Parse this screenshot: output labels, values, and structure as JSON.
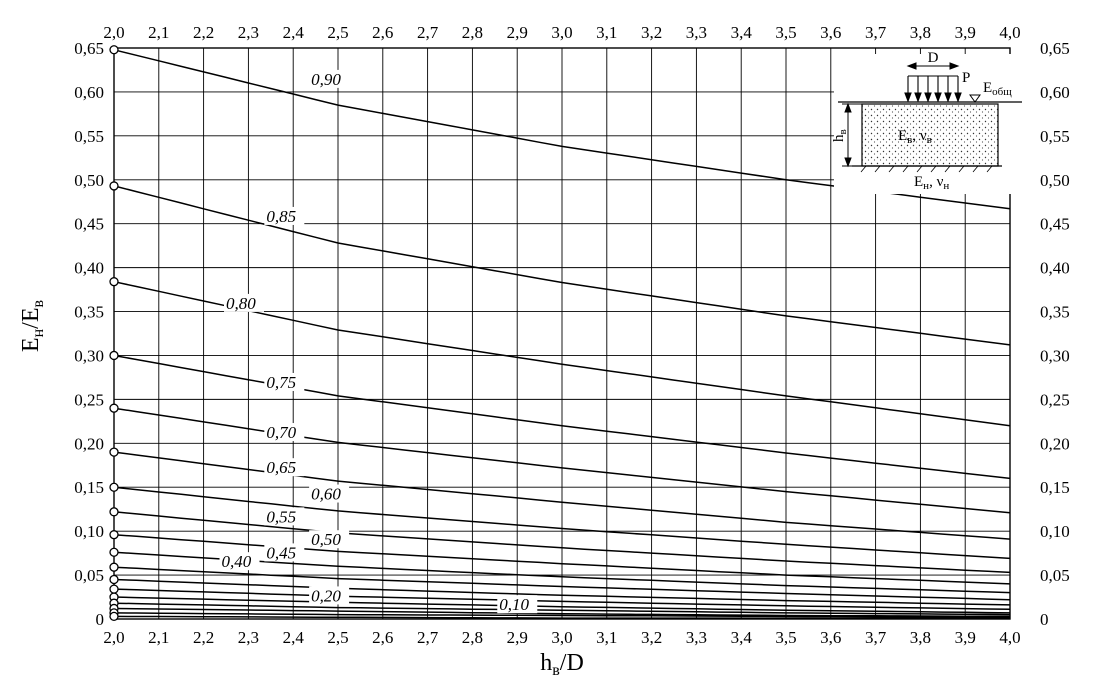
{
  "chart_data": {
    "type": "line",
    "xlabel": "h",
    "xlabel_sub": "в",
    "xlabel_tail": "/D",
    "ylabel": "E",
    "ylabel_sub1": "н",
    "ylabel_mid": "/E",
    "ylabel_sub2": "в",
    "xlim": [
      2.0,
      4.0
    ],
    "ylim": [
      0,
      0.65
    ],
    "grid": true,
    "x_ticks": [
      "2,0",
      "2,1",
      "2,2",
      "2,3",
      "2,4",
      "2,5",
      "2,6",
      "2,7",
      "2,8",
      "2,9",
      "3,0",
      "3,1",
      "3,2",
      "3,3",
      "3,4",
      "3,5",
      "3,6",
      "3,7",
      "3,8",
      "3,9",
      "4,0"
    ],
    "y_ticks": [
      "0",
      "0,05",
      "0,10",
      "0,15",
      "0,20",
      "0,25",
      "0,30",
      "0,35",
      "0,40",
      "0,45",
      "0,50",
      "0,55",
      "0,60",
      "0,65"
    ],
    "x": [
      2.0,
      2.5,
      3.0,
      3.5,
      4.0
    ],
    "series": [
      {
        "name": "0,90",
        "values": [
          0.648,
          0.585,
          0.538,
          0.5,
          0.467
        ],
        "label_at": [
          2.44,
          0.608
        ]
      },
      {
        "name": "0,85",
        "values": [
          0.493,
          0.428,
          0.383,
          0.345,
          0.312
        ],
        "label_at": [
          2.34,
          0.452
        ]
      },
      {
        "name": "0,80",
        "values": [
          0.384,
          0.329,
          0.29,
          0.254,
          0.22
        ],
        "label_at": [
          2.25,
          0.353
        ]
      },
      {
        "name": "0,75",
        "values": [
          0.3,
          0.254,
          0.22,
          0.189,
          0.16
        ],
        "label_at": [
          2.34,
          0.263
        ]
      },
      {
        "name": "0,70",
        "values": [
          0.24,
          0.201,
          0.172,
          0.145,
          0.121
        ],
        "label_at": [
          2.34,
          0.206
        ]
      },
      {
        "name": "0,65",
        "values": [
          0.19,
          0.157,
          0.133,
          0.11,
          0.091
        ],
        "label_at": [
          2.34,
          0.166
        ]
      },
      {
        "name": "0,60",
        "values": [
          0.15,
          0.123,
          0.103,
          0.085,
          0.069
        ],
        "label_at": [
          2.44,
          0.136
        ]
      },
      {
        "name": "0,55",
        "values": [
          0.122,
          0.098,
          0.081,
          0.066,
          0.053
        ],
        "label_at": [
          2.34,
          0.11
        ]
      },
      {
        "name": "0,50",
        "values": [
          0.096,
          0.077,
          0.063,
          0.05,
          0.04
        ],
        "label_at": [
          2.44,
          0.084
        ]
      },
      {
        "name": "0,45",
        "values": [
          0.076,
          0.06,
          0.048,
          0.038,
          0.03
        ],
        "label_at": [
          2.34,
          0.069
        ]
      },
      {
        "name": "0,40",
        "values": [
          0.059,
          0.046,
          0.037,
          0.029,
          0.022
        ],
        "label_at": [
          2.24,
          0.059
        ]
      },
      {
        "name": "",
        "values": [
          0.045,
          0.035,
          0.027,
          0.021,
          0.016
        ]
      },
      {
        "name": "",
        "values": [
          0.034,
          0.026,
          0.02,
          0.015,
          0.011
        ]
      },
      {
        "name": "",
        "values": [
          0.025,
          0.019,
          0.014,
          0.01,
          0.007
        ]
      },
      {
        "name": "0,20",
        "values": [
          0.018,
          0.013,
          0.01,
          0.007,
          0.005
        ],
        "label_at": [
          2.44,
          0.02
        ]
      },
      {
        "name": "",
        "values": [
          0.012,
          0.009,
          0.006,
          0.004,
          0.003
        ]
      },
      {
        "name": "0,10",
        "values": [
          0.007,
          0.005,
          0.004,
          0.003,
          0.002
        ],
        "label_at": [
          2.86,
          0.01
        ]
      },
      {
        "name": "",
        "values": [
          0.003,
          0.002,
          0.001,
          0.001,
          0.001
        ]
      }
    ]
  },
  "inset": {
    "d_label": "D",
    "p_label": "P",
    "e_total": "E",
    "e_total_sub": "общ",
    "h_label": "h",
    "h_sub": "в",
    "upper_layer": "E",
    "upper_layer_sub": "в",
    "upper_layer_tail": ", ν",
    "upper_layer_tail_sub": "в",
    "lower_layer": "E",
    "lower_layer_sub": "н",
    "lower_layer_tail": ", ν",
    "lower_layer_tail_sub": "н"
  }
}
